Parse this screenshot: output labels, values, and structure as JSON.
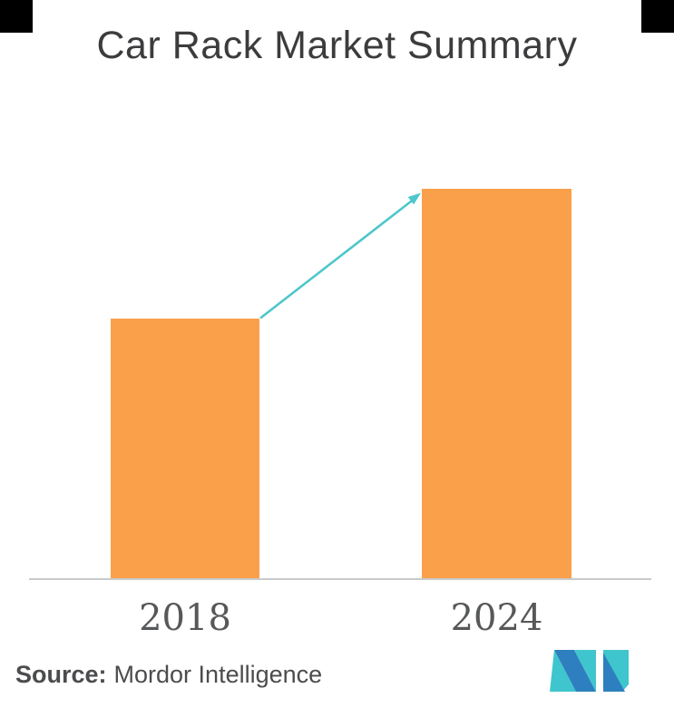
{
  "title": "Car Rack Market Summary",
  "x_axis": {
    "labels": [
      "2018",
      "2024"
    ]
  },
  "source": {
    "label": "Source:",
    "text": "Mordor Intelligence"
  },
  "logo": {
    "name": "mordor-intelligence-logo-mark",
    "teal": "#3FC5CD",
    "blue": "#2E7FBF"
  },
  "colors": {
    "bar": "#FAA04A",
    "arrow": "#4EC6CB",
    "axis_line": "#C9CACB",
    "title_text": "#3C3C3E",
    "axis_label_text": "#57585A",
    "source_text": "#4B4C4E",
    "corner_marks": "#000000",
    "background": "#FFFFFF"
  },
  "chart_data": {
    "type": "bar",
    "title": "Car Rack Market Summary",
    "categories": [
      "2018",
      "2024"
    ],
    "values": [
      1,
      1.5
    ],
    "xlabel": "",
    "ylabel": "",
    "y_axis_shown": false,
    "gridlines": false,
    "legend": false,
    "bar_color": "#FAA04A",
    "annotations": [
      "teal growth arrow from top of 2018 bar to top of 2024 bar"
    ],
    "note": "No numeric axis in figure; values are relative bar heights (2024 is about 1.5x the 2018 bar)"
  }
}
